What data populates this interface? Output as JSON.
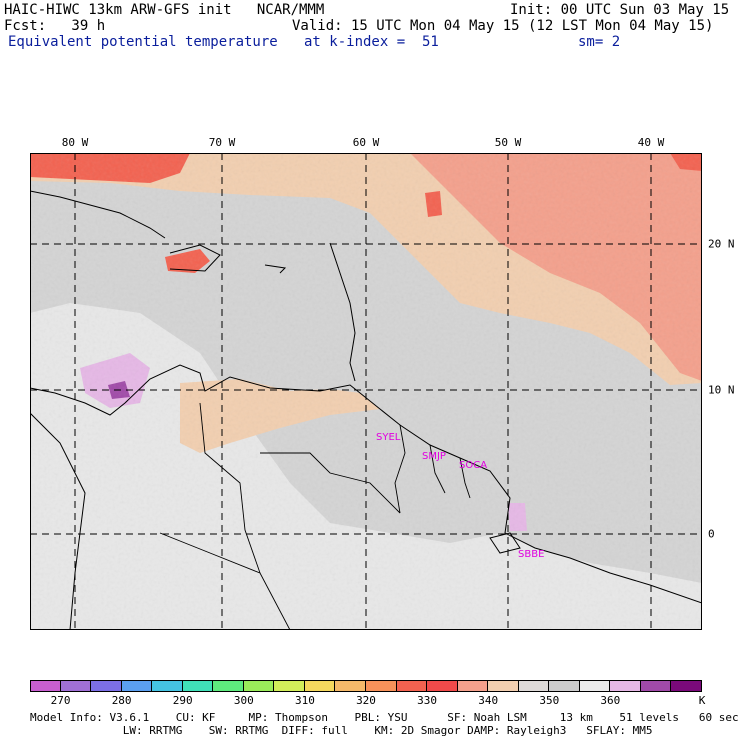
{
  "header": {
    "line1_left": "HAIC-HIWC 13km ARW-GFS init   NCAR/MMM",
    "line1_right": "Init: 00 UTC Sun 03 May 15",
    "fcst": "Fcst:   39 h",
    "valid": "Valid: 15 UTC Mon 04 May 15 (12 LST Mon 04 May 15)",
    "field": "Equivalent potential temperature",
    "level": "at k-index =  51",
    "smooth": "sm= 2"
  },
  "map": {
    "lon_labels": [
      "80 W",
      "70 W",
      "60 W",
      "50 W",
      "40 W"
    ],
    "lat_labels": [
      "20 N",
      "10 N",
      "0"
    ],
    "stations": [
      "SYEL",
      "SMJP",
      "SOCA",
      "SBBE"
    ]
  },
  "colorbar": {
    "colors": [
      "#c85fd0",
      "#a070d6",
      "#7c6fe6",
      "#5b9ff0",
      "#45c3e2",
      "#40e0b8",
      "#5eea7e",
      "#9aec5a",
      "#d2ee5a",
      "#f5d85e",
      "#f5b96a",
      "#f7925a",
      "#f36250",
      "#f04a4a",
      "#f4a08c",
      "#f2cfb0",
      "#dedad8",
      "#cccccc",
      "#eaeaea",
      "#e6b8e6",
      "#a04aa8",
      "#7a0a7a"
    ],
    "labels": [
      "270",
      "280",
      "290",
      "300",
      "310",
      "320",
      "330",
      "340",
      "350",
      "360"
    ],
    "unit": "K"
  },
  "footer": {
    "line1": "Model Info: V3.6.1    CU: KF     MP: Thompson    PBL: YSU      SF: Noah LSM     13 km    51 levels   60 sec",
    "line2": "              LW: RRTMG    SW: RRTMG  DIFF: full    KM: 2D Smagor DAMP: Rayleigh3   SFLAY: MM5"
  }
}
